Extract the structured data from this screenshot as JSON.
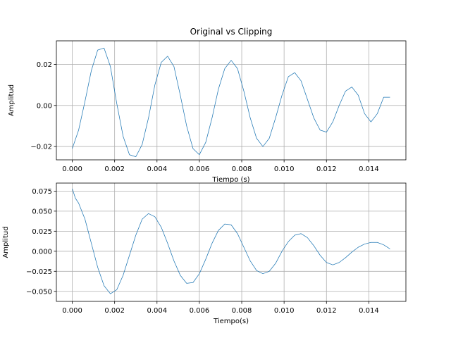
{
  "chart_data": [
    {
      "type": "line",
      "title": "Original vs Clipping",
      "xlabel": "Tiempo (s)",
      "ylabel": "Amplitud",
      "xlim": [
        -0.00075,
        0.01575
      ],
      "ylim": [
        -0.0265,
        0.0315
      ],
      "x_ticks": [
        0.0,
        0.002,
        0.004,
        0.006,
        0.008,
        0.01,
        0.012,
        0.014
      ],
      "x_tick_labels": [
        "0.000",
        "0.002",
        "0.004",
        "0.006",
        "0.008",
        "0.010",
        "0.012",
        "0.014"
      ],
      "y_ticks": [
        -0.02,
        0.0,
        0.02
      ],
      "y_tick_labels": [
        "−0.02",
        "0.00",
        "0.02"
      ],
      "grid": true,
      "series": [
        {
          "color": "#1f77b4",
          "x": [
            0.0,
            0.0003,
            0.0006,
            0.0009,
            0.0012,
            0.0015,
            0.0018,
            0.0021,
            0.0024,
            0.0027,
            0.003,
            0.0033,
            0.0036,
            0.0039,
            0.0042,
            0.0045,
            0.0048,
            0.0051,
            0.0054,
            0.0057,
            0.006,
            0.0063,
            0.0066,
            0.0069,
            0.0072,
            0.0075,
            0.0078,
            0.0081,
            0.0084,
            0.0087,
            0.009,
            0.0093,
            0.0096,
            0.0099,
            0.0102,
            0.0105,
            0.0108,
            0.0111,
            0.0114,
            0.0117,
            0.012,
            0.0123,
            0.0126,
            0.0129,
            0.0132,
            0.0135,
            0.0138,
            0.0141,
            0.0144,
            0.0147,
            0.015
          ],
          "y": [
            -0.021,
            -0.012,
            0.002,
            0.017,
            0.027,
            0.028,
            0.019,
            0.001,
            -0.015,
            -0.024,
            -0.025,
            -0.019,
            -0.006,
            0.01,
            0.021,
            0.024,
            0.019,
            0.005,
            -0.01,
            -0.021,
            -0.024,
            -0.018,
            -0.006,
            0.008,
            0.018,
            0.022,
            0.018,
            0.007,
            -0.006,
            -0.016,
            -0.02,
            -0.016,
            -0.006,
            0.005,
            0.014,
            0.016,
            0.012,
            0.003,
            -0.006,
            -0.012,
            -0.013,
            -0.008,
            0.0,
            0.007,
            0.009,
            0.005,
            -0.004,
            -0.008,
            -0.004,
            0.004,
            0.004
          ]
        }
      ]
    },
    {
      "type": "line",
      "title": "",
      "xlabel": "Tiempo(s)",
      "ylabel": "Amplitud",
      "xlim": [
        -0.00075,
        0.01575
      ],
      "ylim": [
        -0.0625,
        0.085
      ],
      "x_ticks": [
        0.0,
        0.002,
        0.004,
        0.006,
        0.008,
        0.01,
        0.012,
        0.014
      ],
      "x_tick_labels": [
        "0.000",
        "0.002",
        "0.004",
        "0.006",
        "0.008",
        "0.010",
        "0.012",
        "0.014"
      ],
      "y_ticks": [
        -0.05,
        -0.025,
        0.0,
        0.025,
        0.05,
        0.075
      ],
      "y_tick_labels": [
        "−0.050",
        "−0.025",
        "0.000",
        "0.025",
        "0.050",
        "0.075"
      ],
      "grid": true,
      "series": [
        {
          "color": "#1f77b4",
          "x": [
            0.0,
            0.00015,
            0.0003,
            0.0006,
            0.0009,
            0.0012,
            0.0015,
            0.0018,
            0.0021,
            0.0024,
            0.0027,
            0.003,
            0.0033,
            0.0036,
            0.0039,
            0.0042,
            0.0045,
            0.0048,
            0.0051,
            0.0054,
            0.0057,
            0.006,
            0.0063,
            0.0066,
            0.0069,
            0.0072,
            0.0075,
            0.0078,
            0.0081,
            0.0084,
            0.0087,
            0.009,
            0.0093,
            0.0096,
            0.0099,
            0.0102,
            0.0105,
            0.0108,
            0.0111,
            0.0114,
            0.0117,
            0.012,
            0.0123,
            0.0126,
            0.0129,
            0.0132,
            0.0135,
            0.0138,
            0.0141,
            0.0144,
            0.0147,
            0.015
          ],
          "y": [
            0.078,
            0.066,
            0.06,
            0.04,
            0.01,
            -0.02,
            -0.043,
            -0.053,
            -0.048,
            -0.03,
            -0.005,
            0.02,
            0.04,
            0.047,
            0.043,
            0.03,
            0.01,
            -0.012,
            -0.03,
            -0.04,
            -0.039,
            -0.028,
            -0.01,
            0.01,
            0.026,
            0.034,
            0.033,
            0.022,
            0.005,
            -0.012,
            -0.024,
            -0.028,
            -0.025,
            -0.015,
            0.0,
            0.012,
            0.02,
            0.022,
            0.017,
            0.007,
            -0.005,
            -0.014,
            -0.017,
            -0.014,
            -0.008,
            -0.001,
            0.005,
            0.009,
            0.011,
            0.011,
            0.008,
            0.003
          ]
        }
      ]
    }
  ]
}
